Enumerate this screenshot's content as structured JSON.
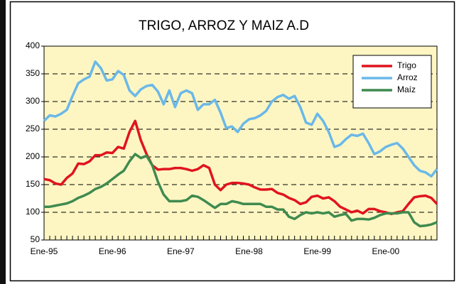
{
  "chart_data": {
    "type": "line",
    "title": "TRIGO,  ARROZ  Y  MAIZ A.D",
    "categories": [
      "Ene-95",
      null,
      null,
      null,
      null,
      null,
      null,
      null,
      null,
      null,
      null,
      null,
      "Ene-96",
      null,
      null,
      null,
      null,
      null,
      null,
      null,
      null,
      null,
      null,
      null,
      "Ene-97",
      null,
      null,
      null,
      null,
      null,
      null,
      null,
      null,
      null,
      null,
      null,
      "Ene-98",
      null,
      null,
      null,
      null,
      null,
      null,
      null,
      null,
      null,
      null,
      null,
      "Ene-99",
      null,
      null,
      null,
      null,
      null,
      null,
      null,
      null,
      null,
      null,
      null,
      "Ene-00",
      null,
      null,
      null,
      null,
      null,
      null,
      null,
      null,
      null
    ],
    "series": [
      {
        "name": "Trigo",
        "color": "#e0141e",
        "values": [
          160,
          158,
          152,
          150,
          162,
          170,
          188,
          187,
          192,
          203,
          203,
          208,
          207,
          218,
          215,
          245,
          265,
          230,
          205,
          185,
          177,
          178,
          178,
          180,
          180,
          178,
          175,
          178,
          185,
          180,
          150,
          140,
          150,
          153,
          153,
          152,
          150,
          145,
          141,
          141,
          142,
          135,
          132,
          126,
          122,
          115,
          118,
          128,
          130,
          125,
          127,
          120,
          110,
          105,
          100,
          103,
          98,
          106,
          106,
          102,
          100,
          97,
          100,
          102,
          115,
          127,
          129,
          130,
          126,
          115
        ]
      },
      {
        "name": "Arroz",
        "color": "#6ab8e8",
        "values": [
          265,
          275,
          273,
          278,
          285,
          310,
          333,
          340,
          345,
          372,
          360,
          338,
          340,
          355,
          348,
          320,
          310,
          322,
          328,
          330,
          318,
          295,
          320,
          290,
          315,
          320,
          315,
          285,
          295,
          295,
          303,
          280,
          252,
          255,
          245,
          260,
          268,
          270,
          275,
          283,
          300,
          308,
          312,
          305,
          310,
          290,
          262,
          258,
          278,
          265,
          245,
          218,
          222,
          232,
          240,
          238,
          242,
          225,
          205,
          210,
          218,
          222,
          225,
          215,
          200,
          185,
          175,
          172,
          165,
          178
        ]
      },
      {
        "name": "Maíz",
        "color": "#3f8a4f",
        "values": [
          110,
          110,
          112,
          114,
          116,
          120,
          126,
          130,
          135,
          142,
          146,
          152,
          160,
          168,
          175,
          192,
          205,
          198,
          202,
          185,
          155,
          132,
          120,
          120,
          120,
          122,
          130,
          128,
          122,
          115,
          108,
          115,
          115,
          120,
          118,
          115,
          115,
          115,
          115,
          110,
          110,
          105,
          105,
          92,
          88,
          95,
          100,
          98,
          100,
          98,
          100,
          92,
          95,
          97,
          85,
          88,
          88,
          87,
          90,
          95,
          98,
          98,
          98,
          100,
          100,
          82,
          75,
          76,
          78,
          82
        ]
      }
    ],
    "ylim": [
      50,
      400
    ],
    "yticks": [
      50,
      100,
      150,
      200,
      250,
      300,
      350,
      400
    ],
    "grid": true,
    "legend": "top-right"
  }
}
